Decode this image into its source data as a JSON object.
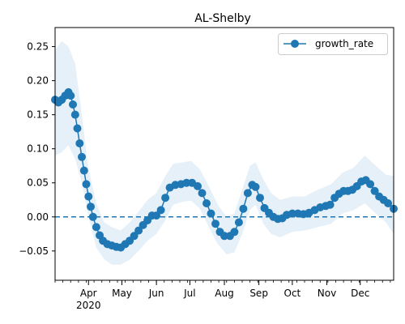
{
  "chart_data": {
    "type": "line",
    "title": "AL-Shelby",
    "xlabel": "",
    "ylabel": "",
    "legend": {
      "position": "top-right",
      "entries": [
        "growth_rate"
      ]
    },
    "grid": false,
    "xlim": [
      "2020-03-02",
      "2020-12-31"
    ],
    "ylim": [
      -0.093,
      0.278
    ],
    "x_ticks": [
      {
        "date": "2020-04-01",
        "label": "Apr",
        "sublabel": "2020"
      },
      {
        "date": "2020-05-01",
        "label": "May"
      },
      {
        "date": "2020-06-01",
        "label": "Jun"
      },
      {
        "date": "2020-07-01",
        "label": "Jul"
      },
      {
        "date": "2020-08-01",
        "label": "Aug"
      },
      {
        "date": "2020-09-01",
        "label": "Sep"
      },
      {
        "date": "2020-10-01",
        "label": "Oct"
      },
      {
        "date": "2020-11-01",
        "label": "Nov"
      },
      {
        "date": "2020-12-01",
        "label": "Dec"
      }
    ],
    "y_ticks": [
      {
        "value": -0.05,
        "label": "−0.05"
      },
      {
        "value": 0.0,
        "label": "0.00"
      },
      {
        "value": 0.05,
        "label": "0.05"
      },
      {
        "value": 0.1,
        "label": "0.10"
      },
      {
        "value": 0.15,
        "label": "0.15"
      },
      {
        "value": 0.2,
        "label": "0.20"
      },
      {
        "value": 0.25,
        "label": "0.25"
      }
    ],
    "reference_line": {
      "y": 0.0,
      "style": "dashed"
    },
    "colors": {
      "series": "#1f77b4",
      "band": "#d6e6f4"
    },
    "series": [
      {
        "name": "growth_rate",
        "marker": "circle",
        "points": [
          [
            "2020-03-02",
            0.172
          ],
          [
            "2020-03-05",
            0.168
          ],
          [
            "2020-03-08",
            0.172
          ],
          [
            "2020-03-11",
            0.178
          ],
          [
            "2020-03-14",
            0.183
          ],
          [
            "2020-03-16",
            0.178
          ],
          [
            "2020-03-18",
            0.165
          ],
          [
            "2020-03-20",
            0.15
          ],
          [
            "2020-03-22",
            0.13
          ],
          [
            "2020-03-24",
            0.108
          ],
          [
            "2020-03-26",
            0.088
          ],
          [
            "2020-03-28",
            0.068
          ],
          [
            "2020-03-30",
            0.048
          ],
          [
            "2020-04-01",
            0.03
          ],
          [
            "2020-04-03",
            0.015
          ],
          [
            "2020-04-05",
            0.0
          ],
          [
            "2020-04-08",
            -0.015
          ],
          [
            "2020-04-11",
            -0.027
          ],
          [
            "2020-04-14",
            -0.035
          ],
          [
            "2020-04-18",
            -0.04
          ],
          [
            "2020-04-22",
            -0.042
          ],
          [
            "2020-04-26",
            -0.044
          ],
          [
            "2020-04-30",
            -0.045
          ],
          [
            "2020-05-04",
            -0.04
          ],
          [
            "2020-05-08",
            -0.035
          ],
          [
            "2020-05-12",
            -0.028
          ],
          [
            "2020-05-16",
            -0.02
          ],
          [
            "2020-05-20",
            -0.012
          ],
          [
            "2020-05-24",
            -0.005
          ],
          [
            "2020-05-28",
            0.002
          ],
          [
            "2020-06-01",
            0.002
          ],
          [
            "2020-06-05",
            0.01
          ],
          [
            "2020-06-09",
            0.028
          ],
          [
            "2020-06-13",
            0.043
          ],
          [
            "2020-06-18",
            0.047
          ],
          [
            "2020-06-23",
            0.048
          ],
          [
            "2020-06-28",
            0.05
          ],
          [
            "2020-07-03",
            0.05
          ],
          [
            "2020-07-08",
            0.045
          ],
          [
            "2020-07-12",
            0.035
          ],
          [
            "2020-07-16",
            0.02
          ],
          [
            "2020-07-20",
            0.005
          ],
          [
            "2020-07-24",
            -0.01
          ],
          [
            "2020-07-28",
            -0.022
          ],
          [
            "2020-08-01",
            -0.028
          ],
          [
            "2020-08-06",
            -0.028
          ],
          [
            "2020-08-10",
            -0.022
          ],
          [
            "2020-08-14",
            -0.008
          ],
          [
            "2020-08-18",
            0.012
          ],
          [
            "2020-08-22",
            0.035
          ],
          [
            "2020-08-26",
            0.047
          ],
          [
            "2020-08-29",
            0.044
          ],
          [
            "2020-09-02",
            0.028
          ],
          [
            "2020-09-06",
            0.013
          ],
          [
            "2020-09-10",
            0.006
          ],
          [
            "2020-09-14",
            0.0
          ],
          [
            "2020-09-18",
            -0.003
          ],
          [
            "2020-09-22",
            -0.002
          ],
          [
            "2020-09-26",
            0.003
          ],
          [
            "2020-10-01",
            0.005
          ],
          [
            "2020-10-06",
            0.005
          ],
          [
            "2020-10-11",
            0.004
          ],
          [
            "2020-10-16",
            0.006
          ],
          [
            "2020-10-21",
            0.01
          ],
          [
            "2020-10-26",
            0.014
          ],
          [
            "2020-10-31",
            0.016
          ],
          [
            "2020-11-04",
            0.018
          ],
          [
            "2020-11-08",
            0.028
          ],
          [
            "2020-11-12",
            0.034
          ],
          [
            "2020-11-16",
            0.038
          ],
          [
            "2020-11-20",
            0.038
          ],
          [
            "2020-11-24",
            0.04
          ],
          [
            "2020-11-28",
            0.045
          ],
          [
            "2020-12-02",
            0.052
          ],
          [
            "2020-12-06",
            0.054
          ],
          [
            "2020-12-10",
            0.048
          ],
          [
            "2020-12-14",
            0.038
          ],
          [
            "2020-12-18",
            0.03
          ],
          [
            "2020-12-22",
            0.025
          ],
          [
            "2020-12-26",
            0.02
          ],
          [
            "2020-12-31",
            0.012
          ]
        ],
        "band": [
          [
            "2020-03-02",
            0.09,
            0.245
          ],
          [
            "2020-03-08",
            0.095,
            0.258
          ],
          [
            "2020-03-14",
            0.105,
            0.25
          ],
          [
            "2020-03-20",
            0.085,
            0.225
          ],
          [
            "2020-03-26",
            0.05,
            0.15
          ],
          [
            "2020-04-01",
            0.0,
            0.07
          ],
          [
            "2020-04-08",
            -0.045,
            0.02
          ],
          [
            "2020-04-15",
            -0.062,
            -0.008
          ],
          [
            "2020-04-22",
            -0.07,
            -0.015
          ],
          [
            "2020-04-30",
            -0.07,
            -0.02
          ],
          [
            "2020-05-08",
            -0.063,
            -0.008
          ],
          [
            "2020-05-16",
            -0.05,
            0.008
          ],
          [
            "2020-05-24",
            -0.035,
            0.025
          ],
          [
            "2020-06-01",
            -0.025,
            0.035
          ],
          [
            "2020-06-09",
            -0.005,
            0.06
          ],
          [
            "2020-06-16",
            0.018,
            0.078
          ],
          [
            "2020-06-24",
            0.022,
            0.08
          ],
          [
            "2020-07-02",
            0.024,
            0.082
          ],
          [
            "2020-07-10",
            0.012,
            0.07
          ],
          [
            "2020-07-18",
            -0.015,
            0.045
          ],
          [
            "2020-07-26",
            -0.04,
            0.018
          ],
          [
            "2020-08-03",
            -0.055,
            0.0
          ],
          [
            "2020-08-10",
            -0.052,
            0.005
          ],
          [
            "2020-08-17",
            -0.025,
            0.04
          ],
          [
            "2020-08-24",
            0.01,
            0.075
          ],
          [
            "2020-08-29",
            0.018,
            0.08
          ],
          [
            "2020-09-05",
            -0.01,
            0.055
          ],
          [
            "2020-09-12",
            -0.025,
            0.035
          ],
          [
            "2020-09-20",
            -0.03,
            0.025
          ],
          [
            "2020-10-01",
            -0.022,
            0.03
          ],
          [
            "2020-10-12",
            -0.02,
            0.03
          ],
          [
            "2020-10-24",
            -0.015,
            0.04
          ],
          [
            "2020-11-05",
            -0.01,
            0.048
          ],
          [
            "2020-11-15",
            0.005,
            0.065
          ],
          [
            "2020-11-25",
            0.01,
            0.072
          ],
          [
            "2020-12-05",
            0.02,
            0.09
          ],
          [
            "2020-12-15",
            0.005,
            0.075
          ],
          [
            "2020-12-24",
            -0.008,
            0.062
          ],
          [
            "2020-12-31",
            -0.025,
            0.06
          ]
        ]
      }
    ]
  }
}
